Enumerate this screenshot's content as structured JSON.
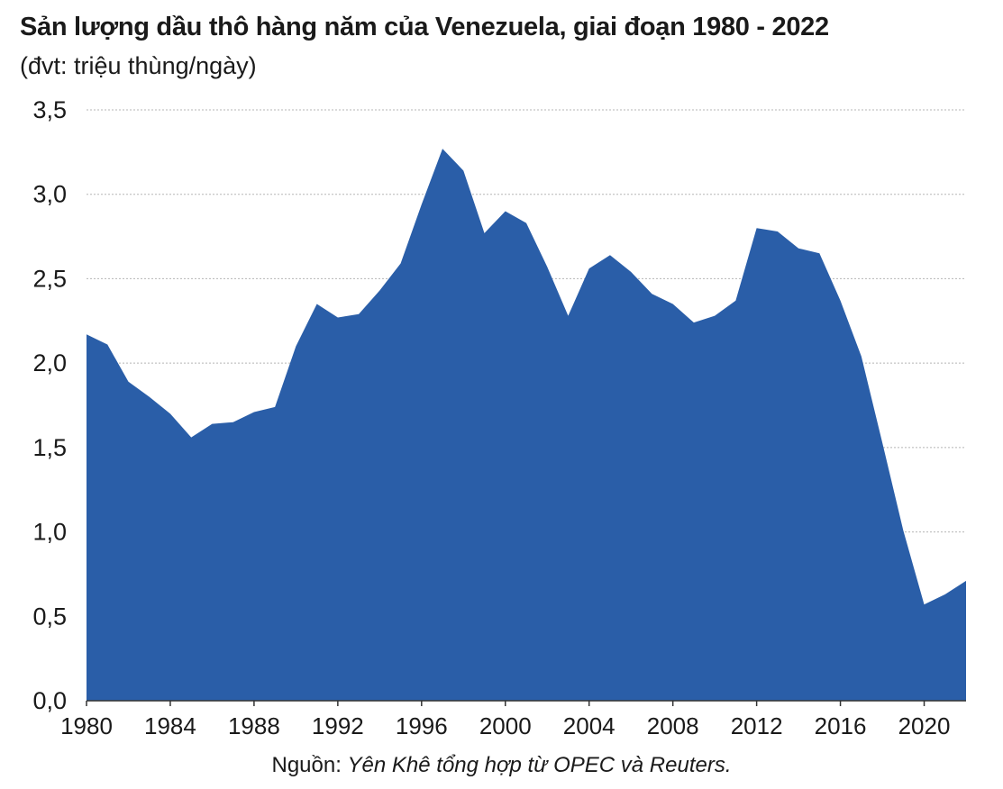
{
  "colors": {
    "area": "#2a5ea8",
    "grid": "#b5b5b5",
    "axis": "#333333"
  },
  "chart_data": {
    "type": "area",
    "title": "Sản lượng dầu thô hàng năm của Venezuela, giai đoạn 1980 - 2022",
    "subtitle": "(đvt: triệu thùng/ngày)",
    "xlabel": "",
    "ylabel": "triệu thùng/ngày",
    "x": [
      1980,
      1981,
      1982,
      1983,
      1984,
      1985,
      1986,
      1987,
      1988,
      1989,
      1990,
      1991,
      1992,
      1993,
      1994,
      1995,
      1996,
      1997,
      1998,
      1999,
      2000,
      2001,
      2002,
      2003,
      2004,
      2005,
      2006,
      2007,
      2008,
      2009,
      2010,
      2011,
      2012,
      2013,
      2014,
      2015,
      2016,
      2017,
      2018,
      2019,
      2020,
      2021,
      2022
    ],
    "values": [
      2.17,
      2.11,
      1.89,
      1.8,
      1.7,
      1.56,
      1.64,
      1.65,
      1.71,
      1.74,
      2.1,
      2.35,
      2.27,
      2.29,
      2.43,
      2.59,
      2.94,
      3.27,
      3.14,
      2.77,
      2.9,
      2.83,
      2.57,
      2.28,
      2.56,
      2.64,
      2.54,
      2.41,
      2.35,
      2.24,
      2.28,
      2.37,
      2.8,
      2.78,
      2.68,
      2.65,
      2.37,
      2.04,
      1.53,
      1.01,
      0.57,
      0.63,
      0.71
    ],
    "ylim": [
      0,
      3.5
    ],
    "yticks": [
      "0,0",
      "0,5",
      "1,0",
      "1,5",
      "2,0",
      "2,5",
      "3,0",
      "3,5"
    ],
    "xticks": [
      "1980",
      "1984",
      "1988",
      "1992",
      "1996",
      "2000",
      "2004",
      "2008",
      "2012",
      "2016",
      "2020"
    ],
    "grid": true,
    "source_label": "Nguồn:",
    "source_text": "Yên Khê tổng hợp từ OPEC và Reuters."
  }
}
